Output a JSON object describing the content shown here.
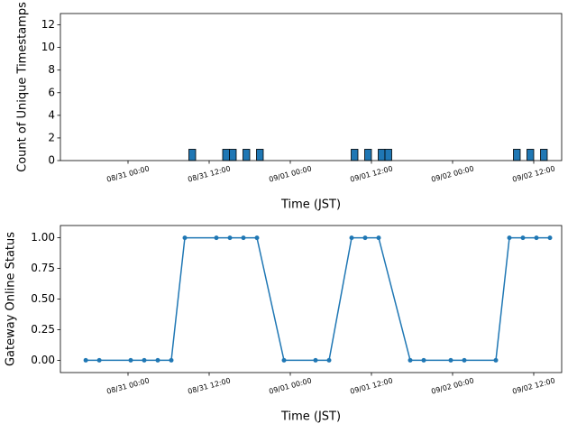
{
  "chart_data": [
    {
      "type": "bar",
      "ylabel": "Count of Unique Timestamps",
      "xlabel": "Time (JST)",
      "color": "#1f77b4",
      "x": [
        "08/31 09:00",
        "08/31 14:00",
        "08/31 15:00",
        "08/31 17:00",
        "08/31 19:00",
        "09/01 09:00",
        "09/01 11:00",
        "09/01 13:00",
        "09/01 14:00",
        "09/02 09:00",
        "09/02 11:00",
        "09/02 13:00"
      ],
      "values": [
        1,
        1,
        1,
        1,
        1,
        1,
        1,
        1,
        1,
        1,
        1,
        1
      ],
      "xlim": [
        "08/30 14:00",
        "09/02 16:08"
      ],
      "ylim": [
        0,
        13
      ],
      "xticks": [
        "08/31 00:00",
        "08/31 12:00",
        "09/01 00:00",
        "09/01 12:00",
        "09/02 00:00",
        "09/02 12:00"
      ],
      "yticks": [
        0,
        2,
        4,
        6,
        8,
        10,
        12
      ]
    },
    {
      "type": "line",
      "ylabel": "Gateway Online Status",
      "xlabel": "Time (JST)",
      "color": "#1f77b4",
      "x": [
        "08/30 17:45",
        "08/30 19:45",
        "08/31 00:24",
        "08/31 02:24",
        "08/31 04:24",
        "08/31 06:24",
        "08/31 08:24",
        "08/31 13:04",
        "08/31 15:04",
        "08/31 17:04",
        "08/31 19:04",
        "08/31 23:04",
        "09/01 03:44",
        "09/01 05:44",
        "09/01 09:04",
        "09/01 11:04",
        "09/01 13:04",
        "09/01 17:44",
        "09/01 19:44",
        "09/01 23:44",
        "09/02 01:44",
        "09/02 06:24",
        "09/02 08:24",
        "09/02 10:24",
        "09/02 12:24",
        "09/02 14:24"
      ],
      "values": [
        0,
        0,
        0,
        0,
        0,
        0,
        1,
        1,
        1,
        1,
        1,
        0,
        0,
        0,
        1,
        1,
        1,
        0,
        0,
        0,
        0,
        0,
        1,
        1,
        1,
        1
      ],
      "xlim": [
        "08/30 14:00",
        "09/02 16:08"
      ],
      "ylim": [
        -0.1,
        1.1
      ],
      "xticks": [
        "08/31 00:00",
        "08/31 12:00",
        "09/01 00:00",
        "09/01 12:00",
        "09/02 00:00",
        "09/02 12:00"
      ],
      "yticks": [
        {
          "value": 0,
          "label": "0.00"
        },
        {
          "value": 0.25,
          "label": "0.25"
        },
        {
          "value": 0.5,
          "label": "0.50"
        },
        {
          "value": 0.75,
          "label": "0.75"
        },
        {
          "value": 1,
          "label": "1.00"
        }
      ]
    }
  ]
}
